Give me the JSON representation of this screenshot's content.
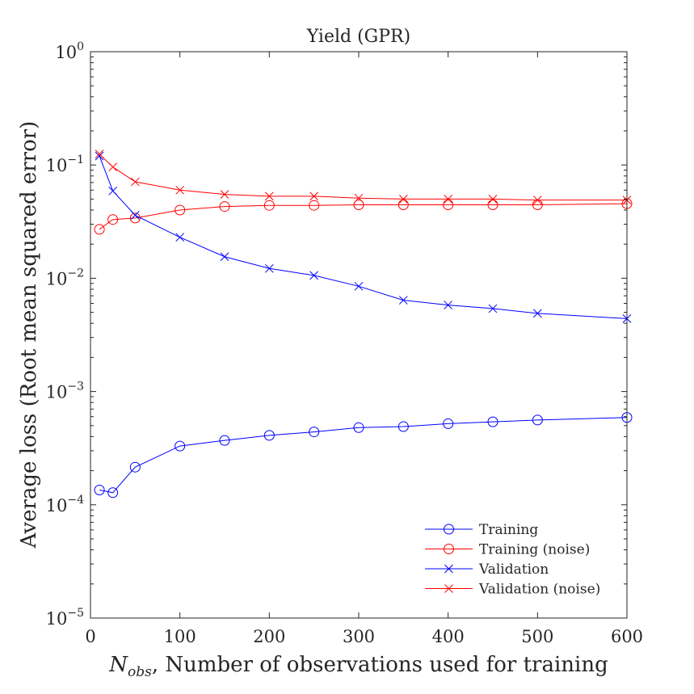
{
  "chart_data": {
    "type": "line",
    "title": "Yield (GPR)",
    "xlabel": {
      "symbol": "N",
      "subscript": "obs",
      "text": ", Number of observations used for training"
    },
    "ylabel": "Average loss (Root mean squared error)",
    "xlim": [
      0,
      600
    ],
    "ylim": [
      1e-05,
      1
    ],
    "yscale": "log",
    "xticks": [
      0,
      100,
      200,
      300,
      400,
      500,
      600
    ],
    "yticks": [
      {
        "base": "10",
        "exp": "0",
        "value": 1
      },
      {
        "base": "10",
        "exp": "−1",
        "value": 0.1
      },
      {
        "base": "10",
        "exp": "−2",
        "value": 0.01
      },
      {
        "base": "10",
        "exp": "−3",
        "value": 0.001
      },
      {
        "base": "10",
        "exp": "−4",
        "value": 0.0001
      },
      {
        "base": "10",
        "exp": "−5",
        "value": 1e-05
      }
    ],
    "grid": false,
    "legend_position": "bottom-right",
    "x": [
      10,
      25,
      50,
      100,
      150,
      200,
      250,
      300,
      350,
      400,
      450,
      500,
      600
    ],
    "series": [
      {
        "name": "Training",
        "color": "#0000ff",
        "marker": "circle",
        "values": [
          0.000135,
          0.000128,
          0.000215,
          0.00033,
          0.00037,
          0.00041,
          0.00044,
          0.00048,
          0.00049,
          0.00052,
          0.00054,
          0.00056,
          0.00059
        ]
      },
      {
        "name": "Training (noise)",
        "color": "#ff0000",
        "marker": "circle",
        "values": [
          0.027,
          0.033,
          0.034,
          0.04,
          0.043,
          0.044,
          0.044,
          0.0445,
          0.0445,
          0.0445,
          0.0445,
          0.0445,
          0.0455
        ]
      },
      {
        "name": "Validation",
        "color": "#0000ff",
        "marker": "x",
        "values": [
          0.12,
          0.059,
          0.036,
          0.023,
          0.0155,
          0.0122,
          0.0106,
          0.0085,
          0.0064,
          0.0058,
          0.0054,
          0.0049,
          0.0044
        ]
      },
      {
        "name": "Validation (noise)",
        "color": "#ff0000",
        "marker": "x",
        "values": [
          0.125,
          0.096,
          0.071,
          0.06,
          0.055,
          0.053,
          0.053,
          0.051,
          0.05,
          0.05,
          0.05,
          0.049,
          0.049
        ]
      }
    ]
  }
}
